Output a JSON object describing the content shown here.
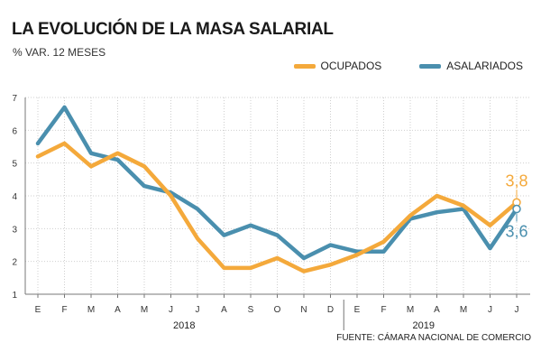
{
  "title": "LA EVOLUCIÓN DE LA MASA SALARIAL",
  "subtitle": "% VAR. 12 MESES",
  "source": "FUENTE: CÁMARA NACIONAL DE COMERCIO",
  "colors": {
    "ocupados": "#f4a93b",
    "asalariados": "#4a8fae",
    "grid": "#cfcfcf",
    "axis": "#777777"
  },
  "chart_data": {
    "type": "line",
    "categories": [
      "E",
      "F",
      "M",
      "A",
      "M",
      "J",
      "J",
      "A",
      "S",
      "O",
      "N",
      "D",
      "E",
      "F",
      "M",
      "A",
      "M",
      "J",
      "J"
    ],
    "year_labels": [
      {
        "label": "2018",
        "index": 5.5
      },
      {
        "label": "2019",
        "index": 14.5
      }
    ],
    "ylim": [
      1,
      7
    ],
    "yticks": [
      1,
      2,
      3,
      4,
      5,
      6,
      7
    ],
    "grid": true,
    "legend_position": "top-right",
    "series": [
      {
        "name": "OCUPADOS",
        "color": "#f4a93b",
        "values": [
          5.2,
          5.6,
          4.9,
          5.3,
          4.9,
          4.0,
          2.7,
          1.8,
          1.8,
          2.1,
          1.7,
          1.9,
          2.2,
          2.6,
          3.4,
          4.0,
          3.7,
          3.1,
          3.8
        ],
        "end_label": "3,8"
      },
      {
        "name": "ASALARIADOS",
        "color": "#4a8fae",
        "values": [
          5.6,
          6.7,
          5.3,
          5.1,
          4.3,
          4.1,
          3.6,
          2.8,
          3.1,
          2.8,
          2.1,
          2.5,
          2.3,
          2.3,
          3.3,
          3.5,
          3.6,
          2.4,
          3.6
        ],
        "end_label": "3,6"
      }
    ]
  }
}
